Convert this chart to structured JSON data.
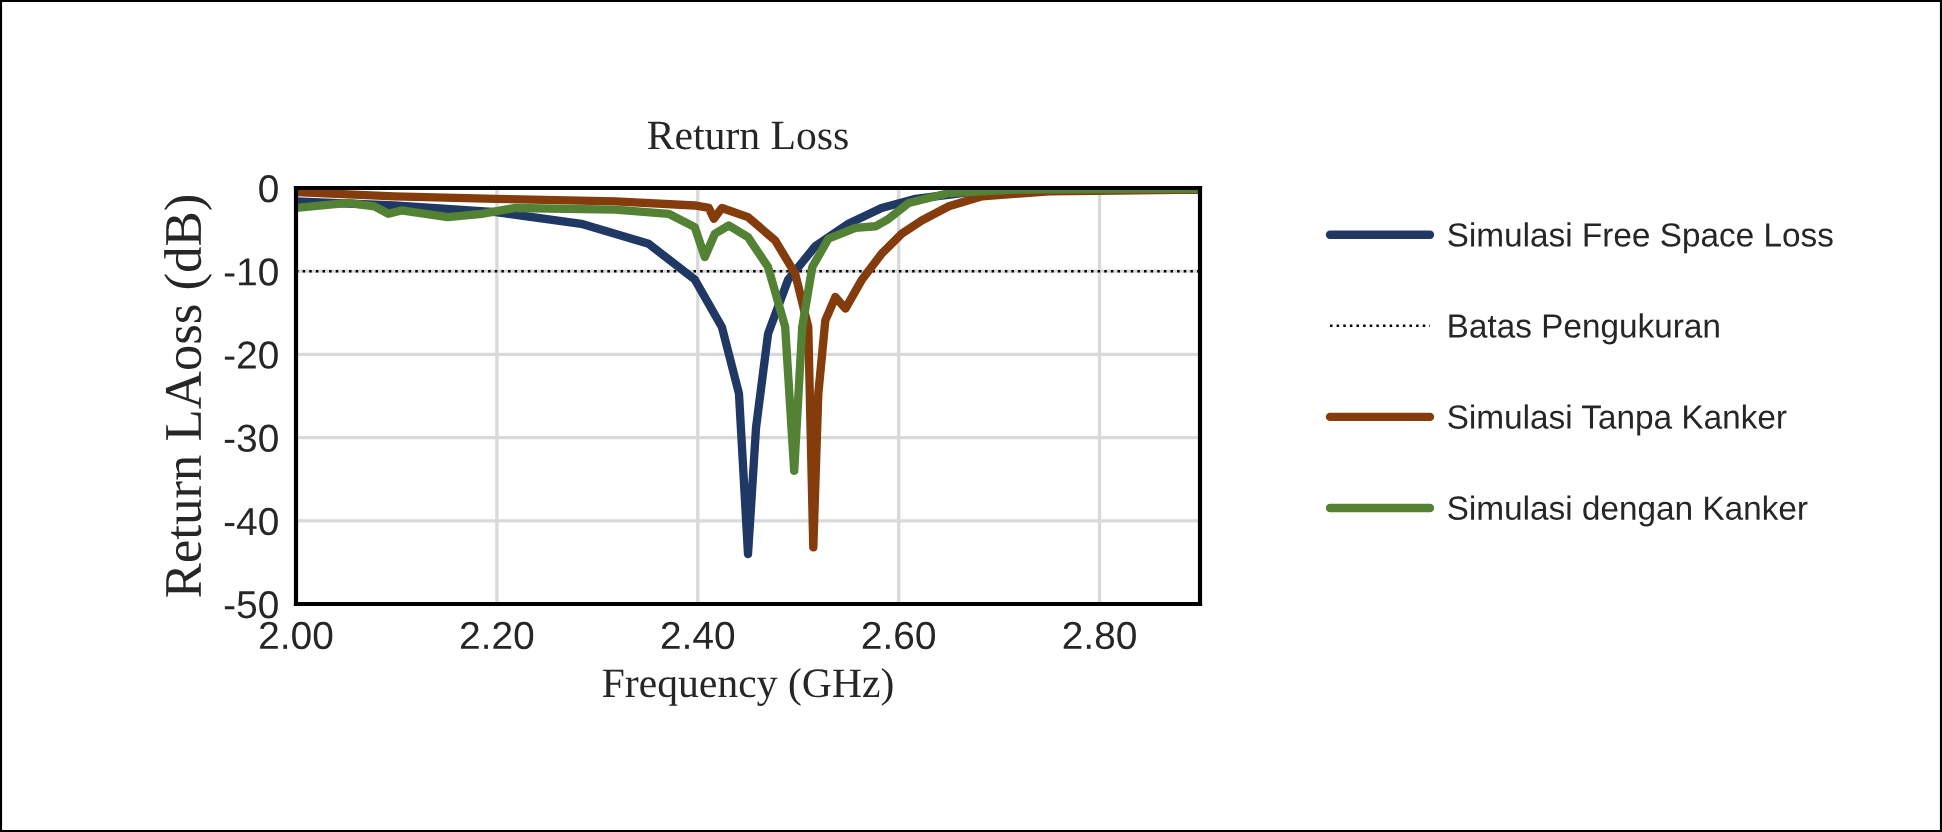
{
  "chart_data": {
    "type": "line",
    "title": "Return Loss",
    "xlabel": "Frequency (GHz)",
    "ylabel": "Return LAoss (dB)",
    "xlim": [
      2.0,
      2.9
    ],
    "xticks": [
      {
        "value": 2.0,
        "label": "2.00"
      },
      {
        "value": 2.2,
        "label": "2.20"
      },
      {
        "value": 2.4,
        "label": "2.40"
      },
      {
        "value": 2.6,
        "label": "2.60"
      },
      {
        "value": 2.8,
        "label": "2.80"
      }
    ],
    "ylim": [
      -50,
      0
    ],
    "yticks": [
      {
        "value": 0,
        "label": "0"
      },
      -10,
      -20,
      -30,
      -40,
      -50
    ],
    "grid": true,
    "legend": "right",
    "marker": "none",
    "line_style": "solid",
    "series": [
      {
        "name": "Simulasi Free Space Loss",
        "color": "#203864",
        "x": [
          2.0,
          2.098,
          2.199,
          2.284,
          2.351,
          2.397,
          2.424,
          2.441,
          2.45,
          2.458,
          2.47,
          2.49,
          2.517,
          2.55,
          2.583,
          2.617,
          2.683,
          2.9
        ],
        "values": [
          -1.6,
          -2.1,
          -2.9,
          -4.3,
          -6.7,
          -11,
          -16.7,
          -24.7,
          -44,
          -28.8,
          -17.5,
          -11,
          -7,
          -4.3,
          -2.4,
          -1.3,
          -0.3,
          -0.2
        ]
      },
      {
        "name": "Simulasi Tanpa Kanker",
        "color": "#843c0c",
        "x": [
          2.0,
          2.098,
          2.199,
          2.318,
          2.397,
          2.411,
          2.416,
          2.424,
          2.45,
          2.477,
          2.497,
          2.51,
          2.515,
          2.52,
          2.527,
          2.537,
          2.547,
          2.563,
          2.583,
          2.603,
          2.623,
          2.65,
          2.683,
          2.75,
          2.9
        ],
        "values": [
          -0.5,
          -1.0,
          -1.3,
          -1.6,
          -2.1,
          -2.4,
          -3.7,
          -2.4,
          -3.5,
          -6.3,
          -10.3,
          -16.7,
          -43.2,
          -24.7,
          -15.9,
          -13.1,
          -14.5,
          -11.1,
          -7.9,
          -5.5,
          -3.9,
          -2.2,
          -1.0,
          -0.4,
          -0.2
        ]
      },
      {
        "name": "Simulasi dengan Kanker",
        "color": "#548235",
        "x": [
          2.0,
          2.052,
          2.078,
          2.092,
          2.105,
          2.151,
          2.185,
          2.218,
          2.318,
          2.371,
          2.397,
          2.407,
          2.417,
          2.431,
          2.45,
          2.47,
          2.487,
          2.496,
          2.504,
          2.514,
          2.53,
          2.557,
          2.577,
          2.59,
          2.61,
          2.65,
          2.716,
          2.9
        ],
        "values": [
          -2.4,
          -1.8,
          -2.2,
          -3.1,
          -2.7,
          -3.5,
          -3.1,
          -2.4,
          -2.6,
          -3.1,
          -4.7,
          -8.3,
          -5.5,
          -4.5,
          -5.9,
          -9.5,
          -16.7,
          -34,
          -16.7,
          -9.5,
          -6.1,
          -4.8,
          -4.6,
          -3.7,
          -1.8,
          -0.6,
          -0.2,
          -0.1
        ]
      }
    ],
    "ref_lines": [
      {
        "axis": "y",
        "value": -10,
        "label": "Batas Pengukuran",
        "color": "#000000",
        "line_style": "dotted"
      }
    ]
  }
}
